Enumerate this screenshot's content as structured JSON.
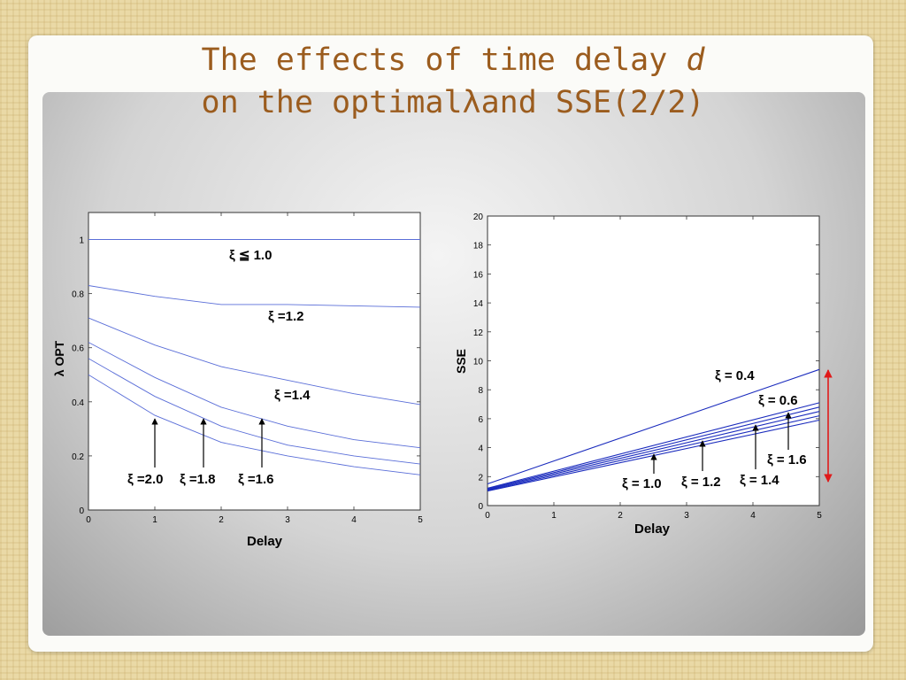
{
  "slide": {
    "title_line1": "The effects of time delay",
    "title_var": "d",
    "title_line2a": "on the optimal",
    "title_symbol": "λ",
    "title_line2b": "and SSE(2/2)"
  },
  "chart_data": [
    {
      "type": "line",
      "title": "",
      "xlabel": "Delay",
      "ylabel": "λ OPT",
      "xlim": [
        0,
        5
      ],
      "ylim": [
        0,
        1.1
      ],
      "grid": false,
      "x": [
        0,
        1,
        2,
        3,
        4,
        5
      ],
      "x_ticks": [
        0,
        1,
        2,
        3,
        4,
        5
      ],
      "y_ticks": [
        0,
        0.2,
        0.4,
        0.6,
        0.8,
        1
      ],
      "line_color": "#5a6ed8",
      "series": [
        {
          "name": "ξ ≦1.0",
          "values": [
            1.0,
            1.0,
            1.0,
            1.0,
            1.0,
            1.0
          ]
        },
        {
          "name": "ξ =1.2",
          "values": [
            0.83,
            0.79,
            0.76,
            0.76,
            0.755,
            0.75
          ]
        },
        {
          "name": "ξ =1.4",
          "values": [
            0.71,
            0.61,
            0.53,
            0.48,
            0.43,
            0.39
          ]
        },
        {
          "name": "ξ =1.6",
          "values": [
            0.62,
            0.49,
            0.38,
            0.31,
            0.26,
            0.23
          ]
        },
        {
          "name": "ξ =1.8",
          "values": [
            0.56,
            0.42,
            0.31,
            0.24,
            0.2,
            0.17
          ]
        },
        {
          "name": "ξ =2.0",
          "values": [
            0.5,
            0.35,
            0.25,
            0.2,
            0.16,
            0.13
          ]
        }
      ],
      "annotations": [
        {
          "text": "ξ  ≦ 1.0"
        },
        {
          "text": "ξ  =1.2"
        },
        {
          "text": "ξ  =1.4"
        },
        {
          "text": "ξ  =2.0"
        },
        {
          "text": "ξ  =1.8"
        },
        {
          "text": "ξ  =1.6"
        }
      ]
    },
    {
      "type": "line",
      "title": "",
      "xlabel": "Delay",
      "ylabel": "SSE",
      "xlim": [
        0,
        5
      ],
      "ylim": [
        0,
        20
      ],
      "grid": false,
      "x": [
        0,
        5
      ],
      "x_ticks": [
        0,
        1,
        2,
        3,
        4,
        5
      ],
      "y_ticks": [
        0,
        2,
        4,
        6,
        8,
        10,
        12,
        14,
        16,
        18,
        20
      ],
      "line_color": "#1a2bbd",
      "range_arrow_color": "#e01a1a",
      "series": [
        {
          "name": "ξ = 0.4",
          "values": [
            1.5,
            9.4
          ]
        },
        {
          "name": "ξ = 0.6",
          "values": [
            1.2,
            7.1
          ]
        },
        {
          "name": "ξ = 1.6",
          "values": [
            1.15,
            6.8
          ]
        },
        {
          "name": "ξ = 1.4",
          "values": [
            1.1,
            6.5
          ]
        },
        {
          "name": "ξ = 1.2",
          "values": [
            1.05,
            6.2
          ]
        },
        {
          "name": "ξ = 1.0",
          "values": [
            1.0,
            5.9
          ]
        }
      ],
      "annotations": [
        {
          "text": "ξ = 0.4"
        },
        {
          "text": "ξ = 0.6"
        },
        {
          "text": "ξ = 1.6"
        },
        {
          "text": "ξ = 1.0"
        },
        {
          "text": "ξ = 1.2"
        },
        {
          "text": "ξ = 1.4"
        }
      ]
    }
  ]
}
